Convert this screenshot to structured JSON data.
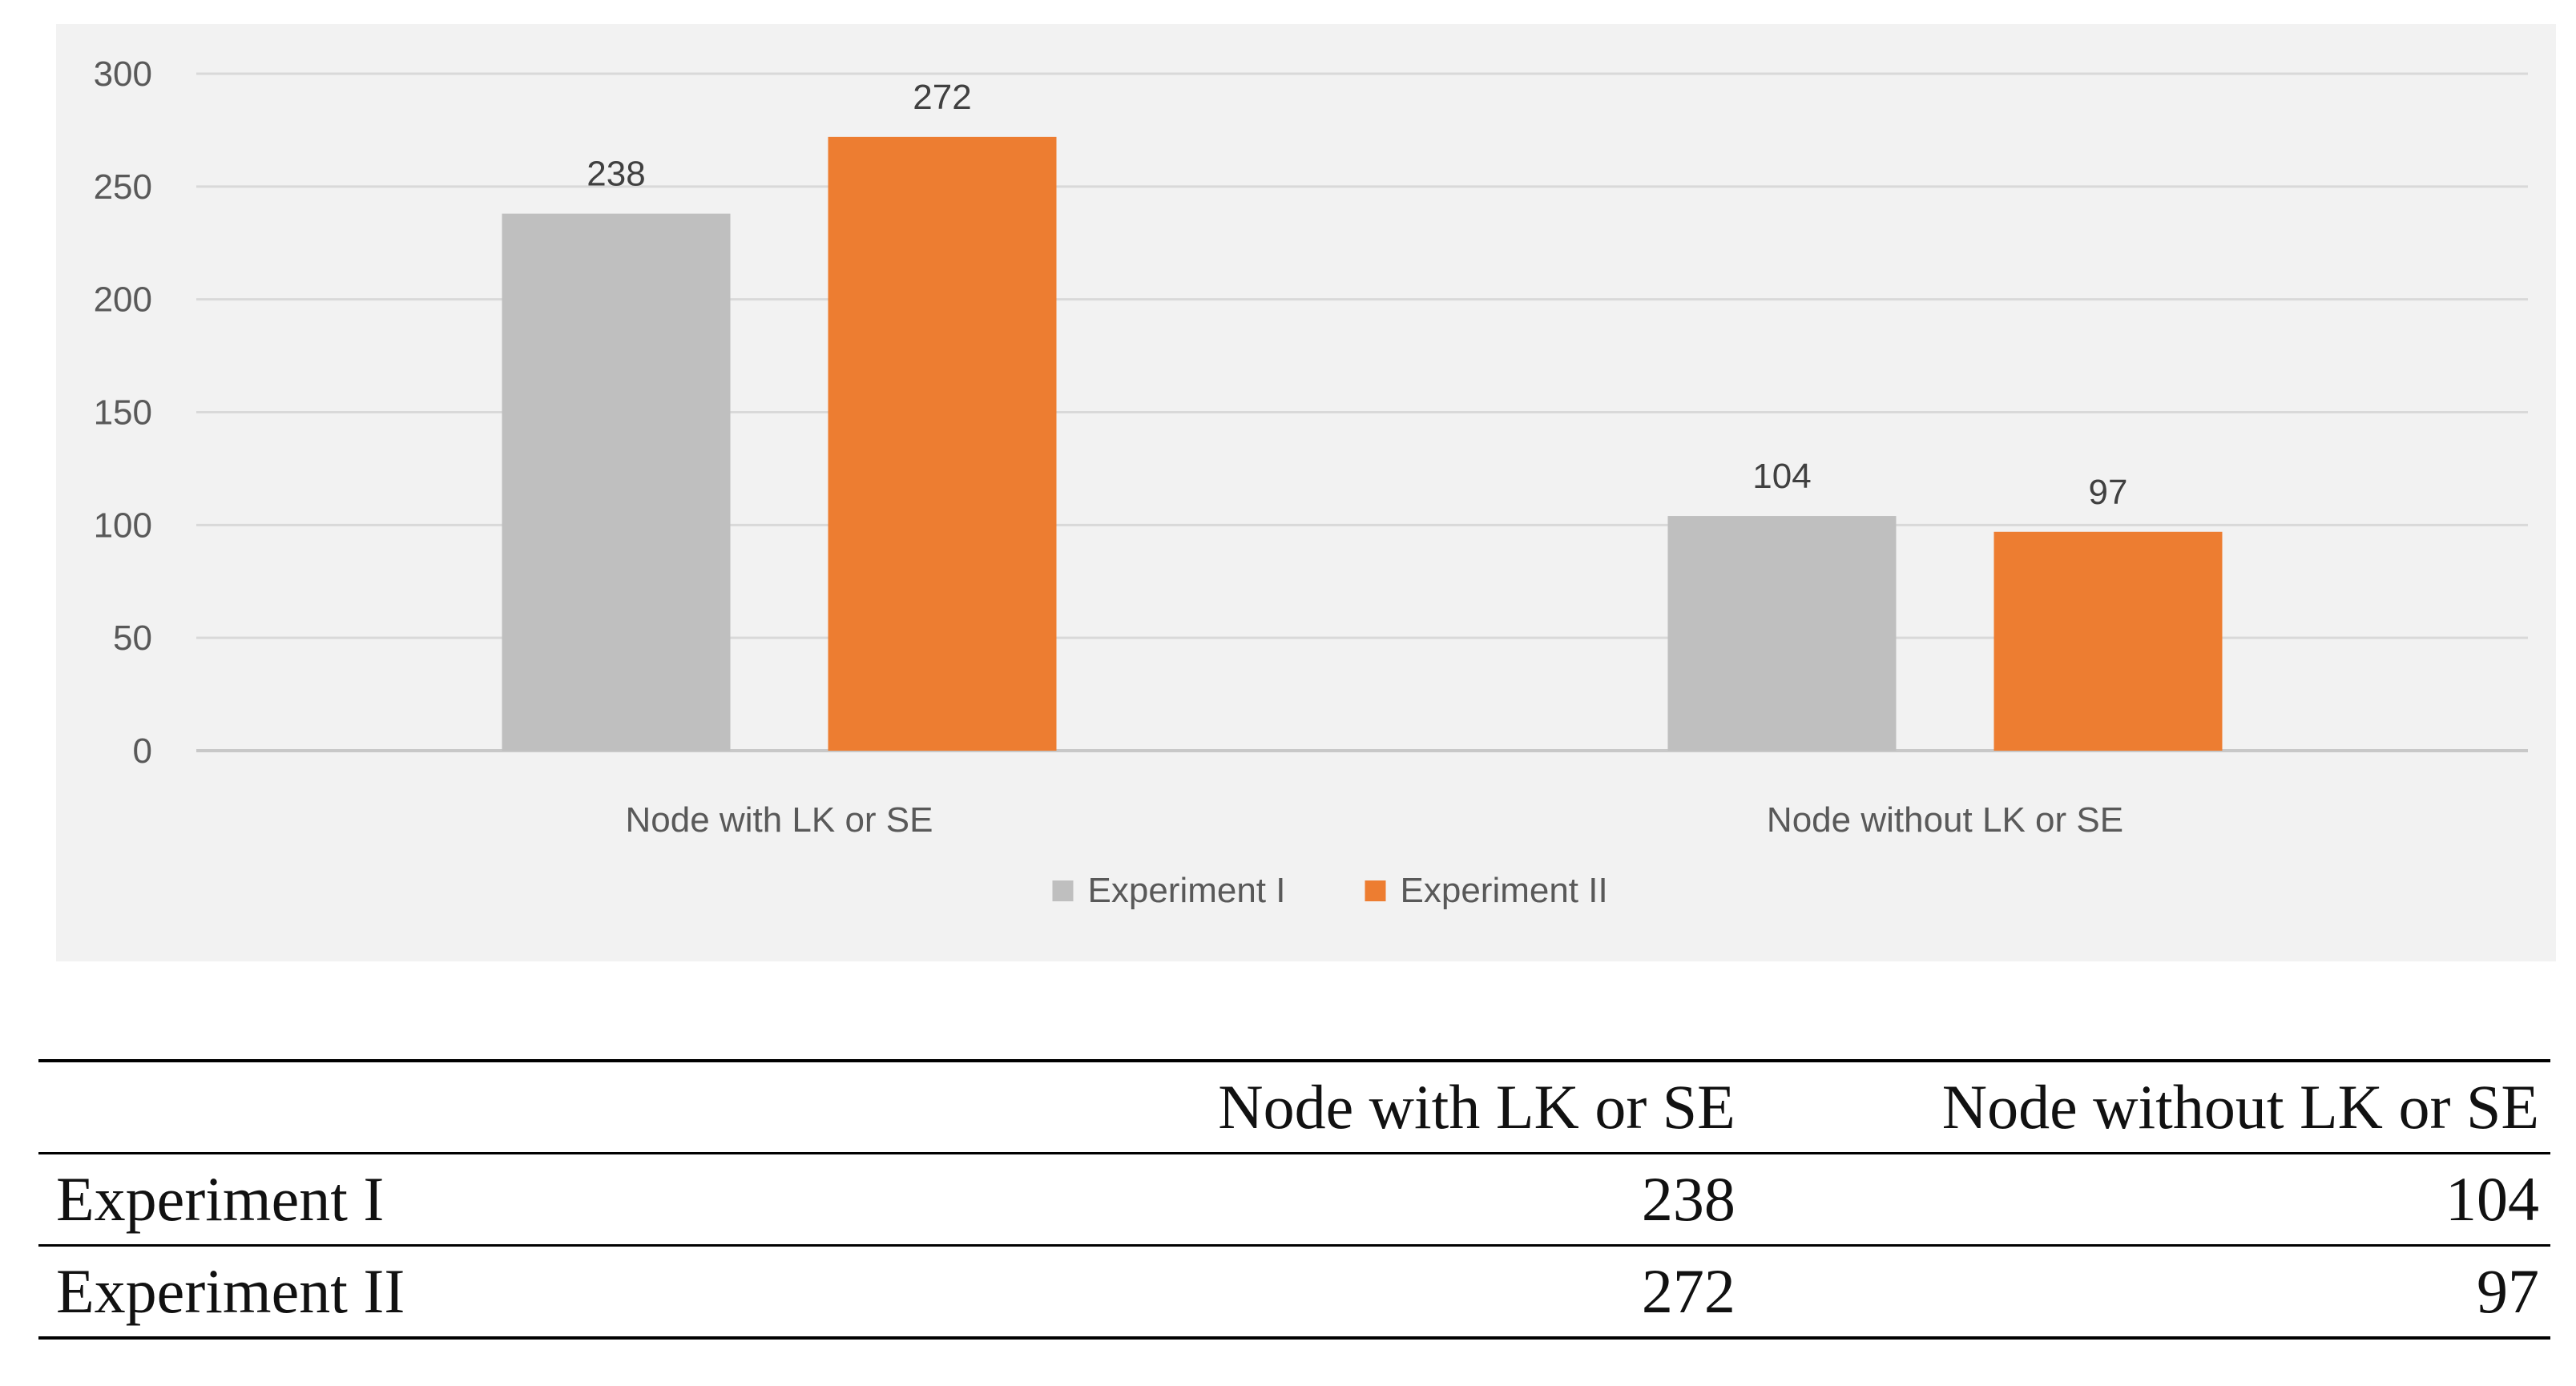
{
  "chart_data": {
    "type": "bar",
    "categories": [
      "Node with LK or SE",
      "Node without LK or SE"
    ],
    "series": [
      {
        "name": "Experiment I",
        "values": [
          238,
          104
        ],
        "color": "#bfbfbf"
      },
      {
        "name": "Experiment II",
        "values": [
          272,
          97
        ],
        "color": "#ed7d31"
      }
    ],
    "ylim": [
      0,
      300
    ],
    "yticks": [
      0,
      50,
      100,
      150,
      200,
      250,
      300
    ],
    "grid": true,
    "legend_position": "bottom",
    "data_labels": true
  },
  "table": {
    "headers": [
      "",
      "Node with LK or SE",
      "Node without LK or SE"
    ],
    "rows": [
      {
        "label": "Experiment I",
        "values": [
          "238",
          "104"
        ]
      },
      {
        "label": "Experiment II",
        "values": [
          "272",
          "97"
        ]
      }
    ]
  }
}
